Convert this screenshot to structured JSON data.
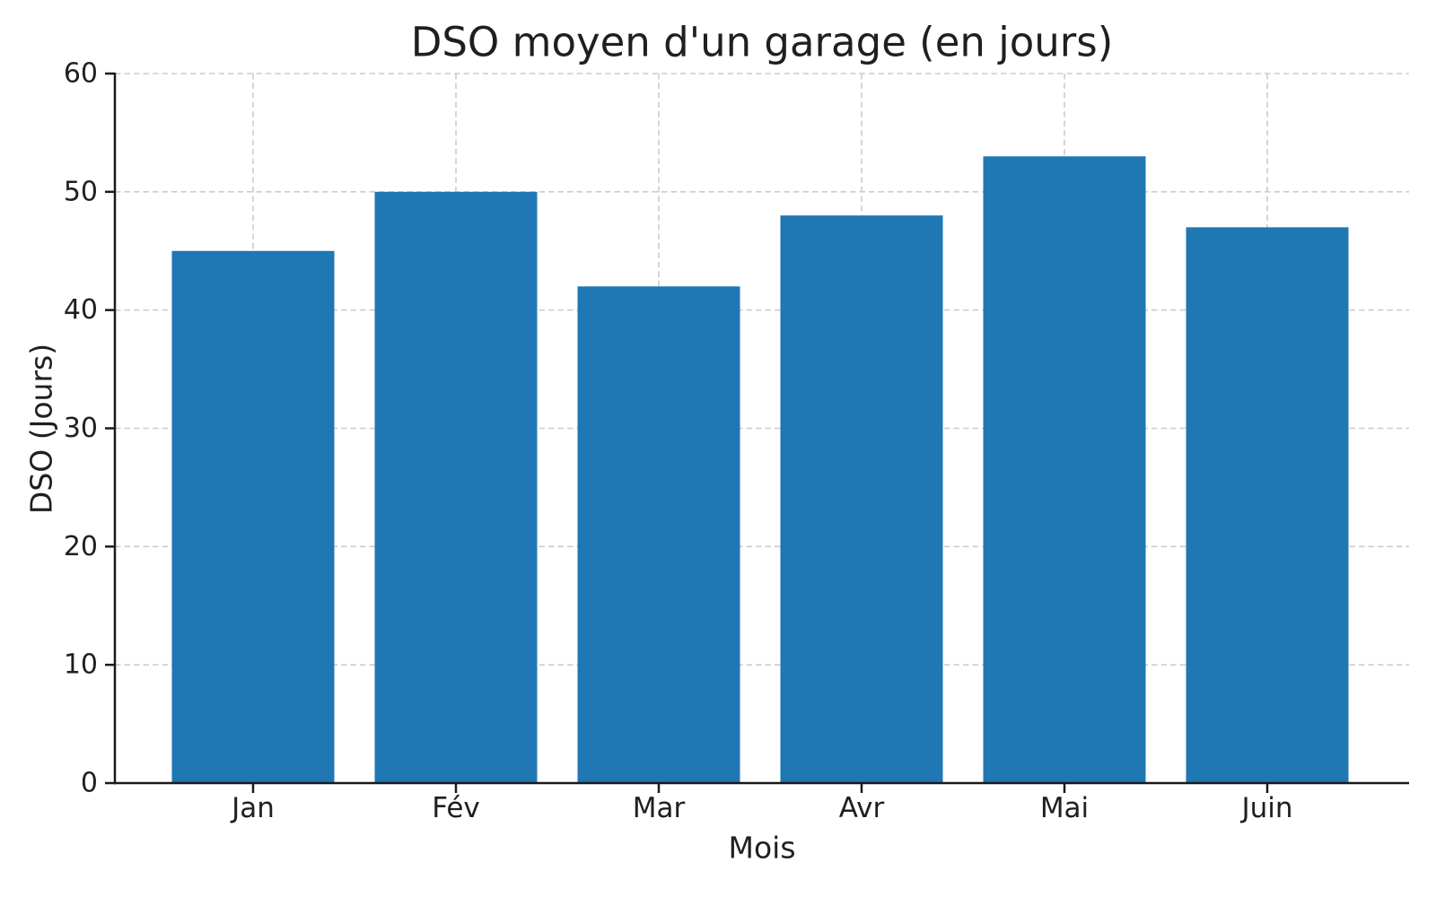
{
  "chart_data": {
    "type": "bar",
    "title": "DSO moyen d'un garage (en jours)",
    "xlabel": "Mois",
    "ylabel": "DSO (Jours)",
    "categories": [
      "Jan",
      "Fév",
      "Mar",
      "Avr",
      "Mai",
      "Juin"
    ],
    "values": [
      45,
      50,
      42,
      48,
      53,
      47
    ],
    "ylim": [
      0,
      60
    ],
    "yticks": [
      0,
      10,
      20,
      30,
      40,
      50,
      60
    ],
    "grid": true,
    "grid_style": "dashed",
    "legend_position": "none",
    "bar_color": "#1f77b4",
    "grid_color": "#cccccc",
    "axis_color": "#1a1a1a",
    "text_color": "#1f1f1f",
    "background_color": "#ffffff"
  }
}
